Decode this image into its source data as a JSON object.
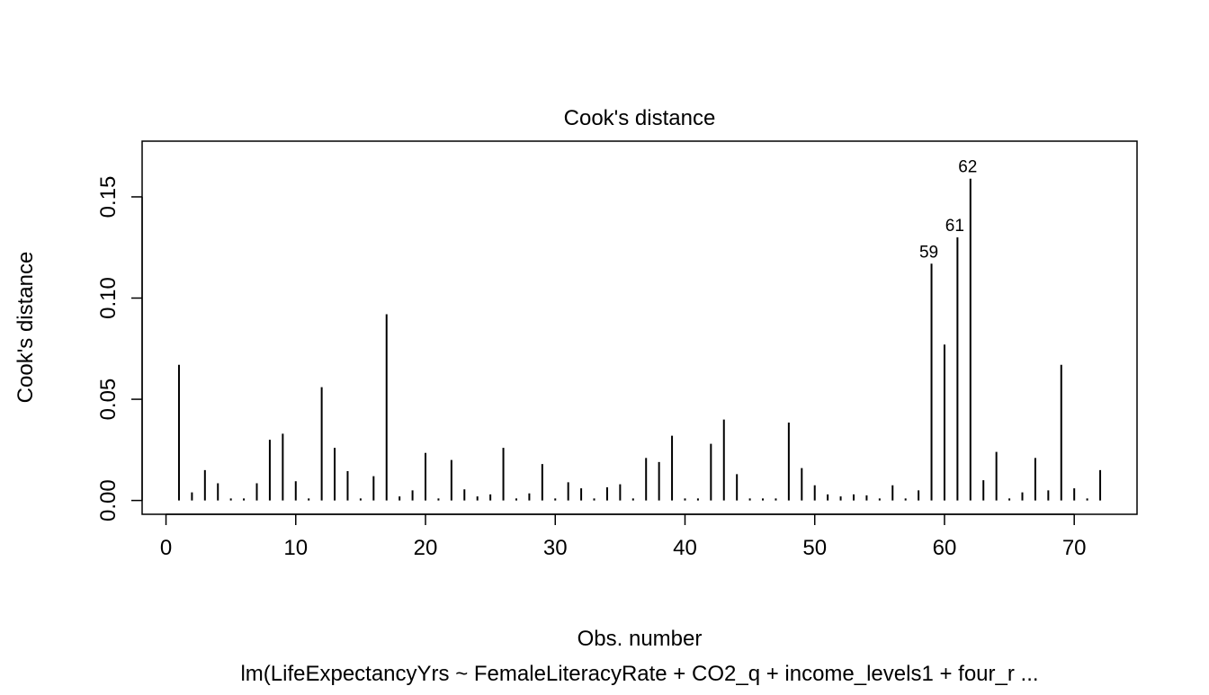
{
  "chart_data": {
    "type": "bar",
    "title": "Cook's distance",
    "xlabel": "Obs. number",
    "ylabel": "Cook's distance",
    "subtitle": "lm(LifeExpectancyYrs ~ FemaleLiteracyRate + CO2_q + income_levels1 + four_r ...",
    "xlim": [
      1,
      72
    ],
    "ylim": [
      0,
      0.1707
    ],
    "xticks": [
      0,
      10,
      20,
      30,
      40,
      50,
      60,
      70
    ],
    "yticks": [
      0.0,
      0.05,
      0.1,
      0.15
    ],
    "ytick_labels": [
      "0.00",
      "0.05",
      "0.10",
      "0.15"
    ],
    "grid": false,
    "x": [
      1,
      2,
      3,
      4,
      5,
      6,
      7,
      8,
      9,
      10,
      11,
      12,
      13,
      14,
      15,
      16,
      17,
      18,
      19,
      20,
      21,
      22,
      23,
      24,
      25,
      26,
      27,
      28,
      29,
      30,
      31,
      32,
      33,
      34,
      35,
      36,
      37,
      38,
      39,
      40,
      41,
      42,
      43,
      44,
      45,
      46,
      47,
      48,
      49,
      50,
      51,
      52,
      53,
      54,
      55,
      56,
      57,
      58,
      59,
      60,
      61,
      62,
      63,
      64,
      65,
      66,
      67,
      68,
      69,
      70,
      71,
      72
    ],
    "values": [
      0.067,
      0.004,
      0.015,
      0.0085,
      0.001,
      0.001,
      0.0085,
      0.03,
      0.033,
      0.0095,
      0.001,
      0.056,
      0.026,
      0.0145,
      0.001,
      0.012,
      0.092,
      0.002,
      0.005,
      0.0235,
      0.001,
      0.02,
      0.0055,
      0.002,
      0.003,
      0.026,
      0.001,
      0.0035,
      0.018,
      0.001,
      0.009,
      0.006,
      0.001,
      0.0065,
      0.008,
      0.001,
      0.021,
      0.019,
      0.032,
      0.001,
      0.001,
      0.028,
      0.04,
      0.013,
      0.001,
      0.001,
      0.001,
      0.0385,
      0.016,
      0.0075,
      0.003,
      0.002,
      0.003,
      0.0025,
      0.001,
      0.0075,
      0.001,
      0.005,
      0.117,
      0.077,
      0.13,
      0.159,
      0.01,
      0.024,
      0.001,
      0.004,
      0.021,
      0.005,
      0.067,
      0.006,
      0.001,
      0.015
    ],
    "annotations": [
      {
        "x": 59,
        "label": "59"
      },
      {
        "x": 61,
        "label": "61"
      },
      {
        "x": 62,
        "label": "62"
      }
    ],
    "color": "#000000"
  }
}
